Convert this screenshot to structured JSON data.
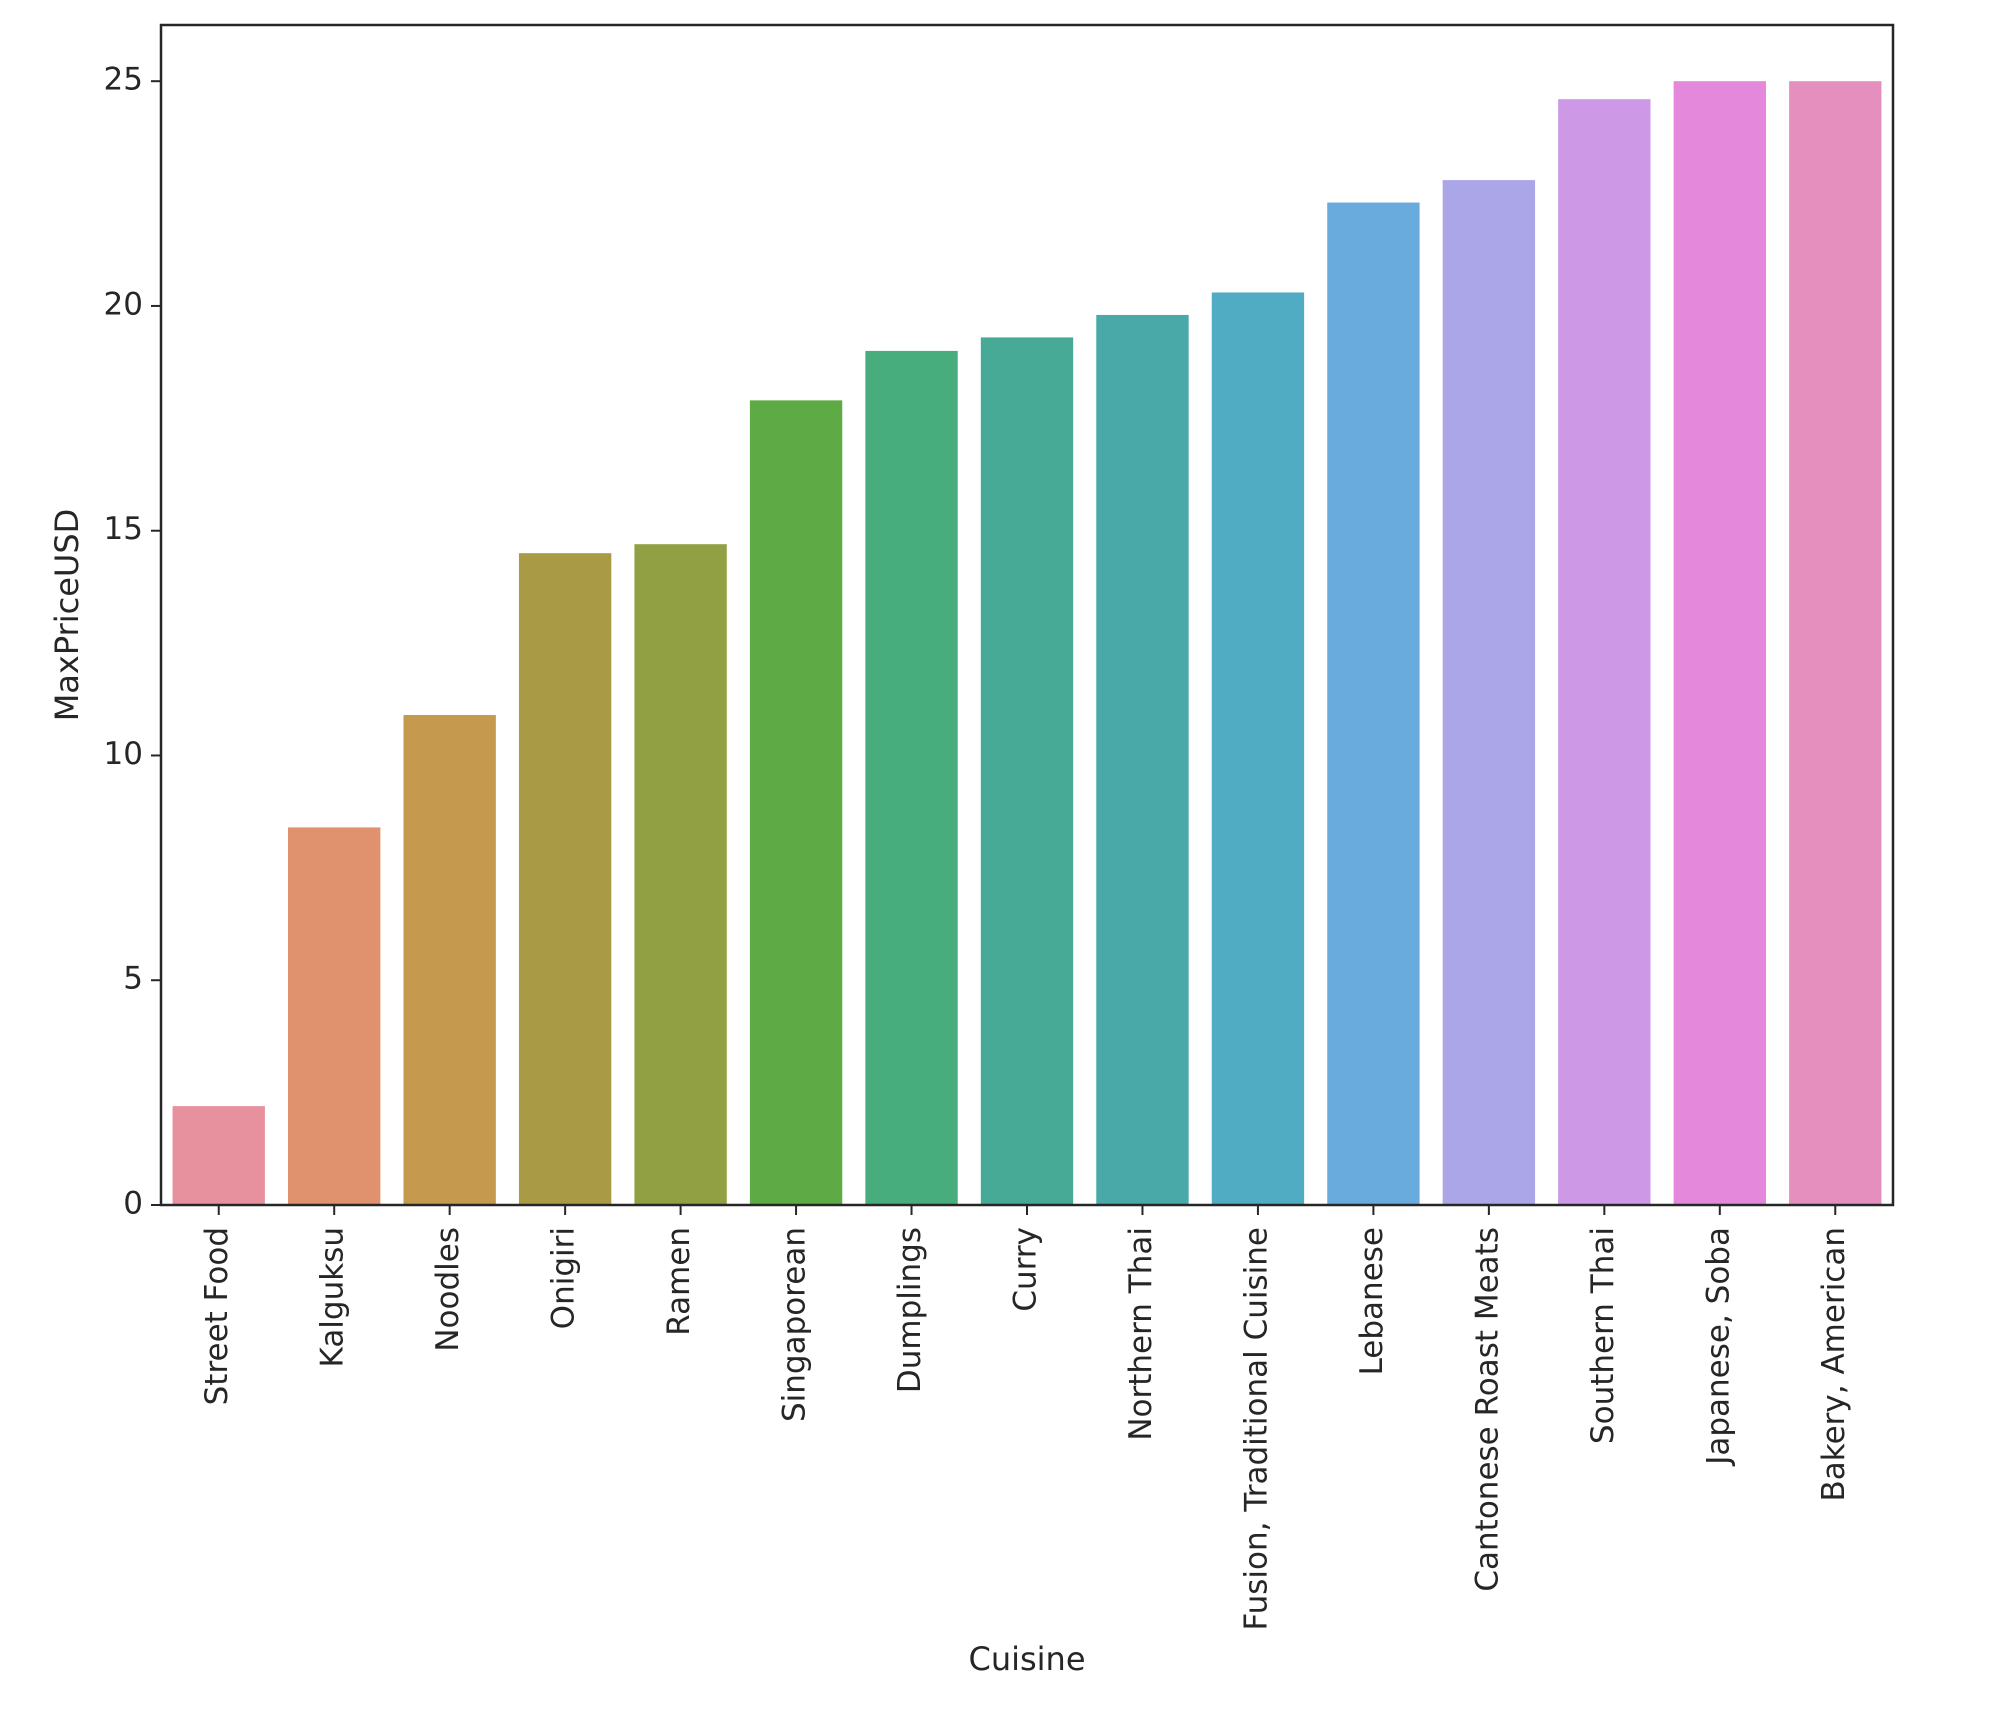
{
  "chart_data": {
    "type": "bar",
    "xlabel": "Cuisine",
    "ylabel": "MaxPriceUSD",
    "ylim": [
      0,
      26.25
    ],
    "yticks": [
      0,
      5,
      10,
      15,
      20,
      25
    ],
    "grid": false,
    "legend": "none",
    "categories": [
      "Street Food",
      "Kalguksu",
      "Noodles",
      "Onigiri",
      "Ramen",
      "Singaporean",
      "Dumplings",
      "Curry",
      "Northern Thai",
      "Fusion, Traditional Cuisine",
      "Lebanese",
      "Cantonese Roast Meats",
      "Southern Thai",
      "Japanese, Soba",
      "Bakery, American"
    ],
    "values": [
      2.2,
      8.4,
      10.9,
      14.5,
      14.7,
      17.9,
      19.0,
      19.3,
      19.8,
      20.3,
      22.3,
      22.8,
      24.6,
      25.0,
      25.0
    ],
    "colors": [
      "#e8919e",
      "#e0916d",
      "#c69a4e",
      "#a99b45",
      "#91a043",
      "#5eab45",
      "#48ad7c",
      "#47aa96",
      "#48a9a8",
      "#4facc3",
      "#6aabde",
      "#aaa6e8",
      "#cd98e6",
      "#e388db",
      "#e58fbf"
    ]
  }
}
